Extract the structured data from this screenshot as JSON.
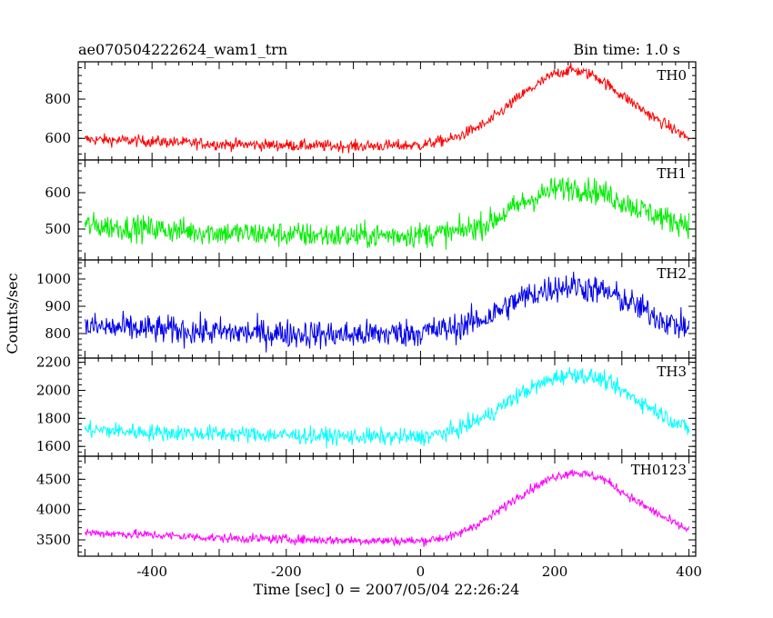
{
  "chart_data": {
    "type": "line",
    "title_left": "ae070504222624_wam1_trn",
    "title_right": "Bin time: 1.0 s",
    "xlabel": "Time [sec] 0 = 2007/05/04 22:26:24",
    "ylabel": "Counts/sec",
    "xlim": [
      -510,
      410
    ],
    "x_ticks": [
      -400,
      -200,
      0,
      200,
      400
    ],
    "panels": [
      {
        "name": "TH0",
        "color": "#ff0000",
        "ylim": [
          490,
          990
        ],
        "y_ticks": [
          600,
          800
        ],
        "baseline": 570,
        "peak": 950,
        "peak_time": 225,
        "noise": 27,
        "profile": [
          {
            "t": -500,
            "v": 595
          },
          {
            "t": -400,
            "v": 585
          },
          {
            "t": -300,
            "v": 570
          },
          {
            "t": -200,
            "v": 565
          },
          {
            "t": -100,
            "v": 560
          },
          {
            "t": 0,
            "v": 565
          },
          {
            "t": 50,
            "v": 600
          },
          {
            "t": 100,
            "v": 680
          },
          {
            "t": 150,
            "v": 820
          },
          {
            "t": 200,
            "v": 930
          },
          {
            "t": 225,
            "v": 950
          },
          {
            "t": 260,
            "v": 920
          },
          {
            "t": 300,
            "v": 820
          },
          {
            "t": 350,
            "v": 700
          },
          {
            "t": 400,
            "v": 600
          }
        ]
      },
      {
        "name": "TH1",
        "color": "#00ee00",
        "ylim": [
          415,
          690
        ],
        "y_ticks": [
          500,
          600
        ],
        "noise": 32,
        "profile": [
          {
            "t": -500,
            "v": 510
          },
          {
            "t": -400,
            "v": 500
          },
          {
            "t": -300,
            "v": 490
          },
          {
            "t": -200,
            "v": 485
          },
          {
            "t": -100,
            "v": 480
          },
          {
            "t": 0,
            "v": 485
          },
          {
            "t": 50,
            "v": 490
          },
          {
            "t": 100,
            "v": 515
          },
          {
            "t": 150,
            "v": 570
          },
          {
            "t": 200,
            "v": 610
          },
          {
            "t": 230,
            "v": 615
          },
          {
            "t": 270,
            "v": 600
          },
          {
            "t": 320,
            "v": 560
          },
          {
            "t": 370,
            "v": 525
          },
          {
            "t": 400,
            "v": 515
          }
        ]
      },
      {
        "name": "TH2",
        "color": "#0000ee",
        "ylim": [
          710,
          1070
        ],
        "y_ticks": [
          800,
          900,
          1000
        ],
        "noise": 48,
        "profile": [
          {
            "t": -500,
            "v": 825
          },
          {
            "t": -400,
            "v": 815
          },
          {
            "t": -300,
            "v": 805
          },
          {
            "t": -200,
            "v": 800
          },
          {
            "t": -100,
            "v": 795
          },
          {
            "t": 0,
            "v": 805
          },
          {
            "t": 50,
            "v": 820
          },
          {
            "t": 100,
            "v": 860
          },
          {
            "t": 150,
            "v": 930
          },
          {
            "t": 200,
            "v": 970
          },
          {
            "t": 230,
            "v": 975
          },
          {
            "t": 280,
            "v": 950
          },
          {
            "t": 330,
            "v": 890
          },
          {
            "t": 370,
            "v": 840
          },
          {
            "t": 400,
            "v": 820
          }
        ]
      },
      {
        "name": "TH3",
        "color": "#00ffff",
        "ylim": [
          1530,
          2230
        ],
        "y_ticks": [
          1600,
          1800,
          2000,
          2200
        ],
        "noise": 55,
        "profile": [
          {
            "t": -500,
            "v": 1720
          },
          {
            "t": -400,
            "v": 1700
          },
          {
            "t": -300,
            "v": 1690
          },
          {
            "t": -200,
            "v": 1680
          },
          {
            "t": -100,
            "v": 1670
          },
          {
            "t": 0,
            "v": 1665
          },
          {
            "t": 50,
            "v": 1710
          },
          {
            "t": 100,
            "v": 1820
          },
          {
            "t": 150,
            "v": 1980
          },
          {
            "t": 200,
            "v": 2090
          },
          {
            "t": 230,
            "v": 2120
          },
          {
            "t": 270,
            "v": 2080
          },
          {
            "t": 320,
            "v": 1940
          },
          {
            "t": 370,
            "v": 1800
          },
          {
            "t": 400,
            "v": 1720
          }
        ]
      },
      {
        "name": "TH0123",
        "color": "#ff00ff",
        "ylim": [
          3230,
          4880
        ],
        "y_ticks": [
          3500,
          4000,
          4500
        ],
        "noise": 70,
        "profile": [
          {
            "t": -500,
            "v": 3620
          },
          {
            "t": -400,
            "v": 3580
          },
          {
            "t": -300,
            "v": 3530
          },
          {
            "t": -200,
            "v": 3510
          },
          {
            "t": -100,
            "v": 3490
          },
          {
            "t": 0,
            "v": 3480
          },
          {
            "t": 50,
            "v": 3560
          },
          {
            "t": 100,
            "v": 3850
          },
          {
            "t": 150,
            "v": 4250
          },
          {
            "t": 200,
            "v": 4550
          },
          {
            "t": 230,
            "v": 4620
          },
          {
            "t": 270,
            "v": 4520
          },
          {
            "t": 320,
            "v": 4150
          },
          {
            "t": 370,
            "v": 3820
          },
          {
            "t": 400,
            "v": 3660
          }
        ]
      }
    ],
    "x_step_sec": 1,
    "grid": false,
    "legend": "panel labels top-right of each panel"
  }
}
